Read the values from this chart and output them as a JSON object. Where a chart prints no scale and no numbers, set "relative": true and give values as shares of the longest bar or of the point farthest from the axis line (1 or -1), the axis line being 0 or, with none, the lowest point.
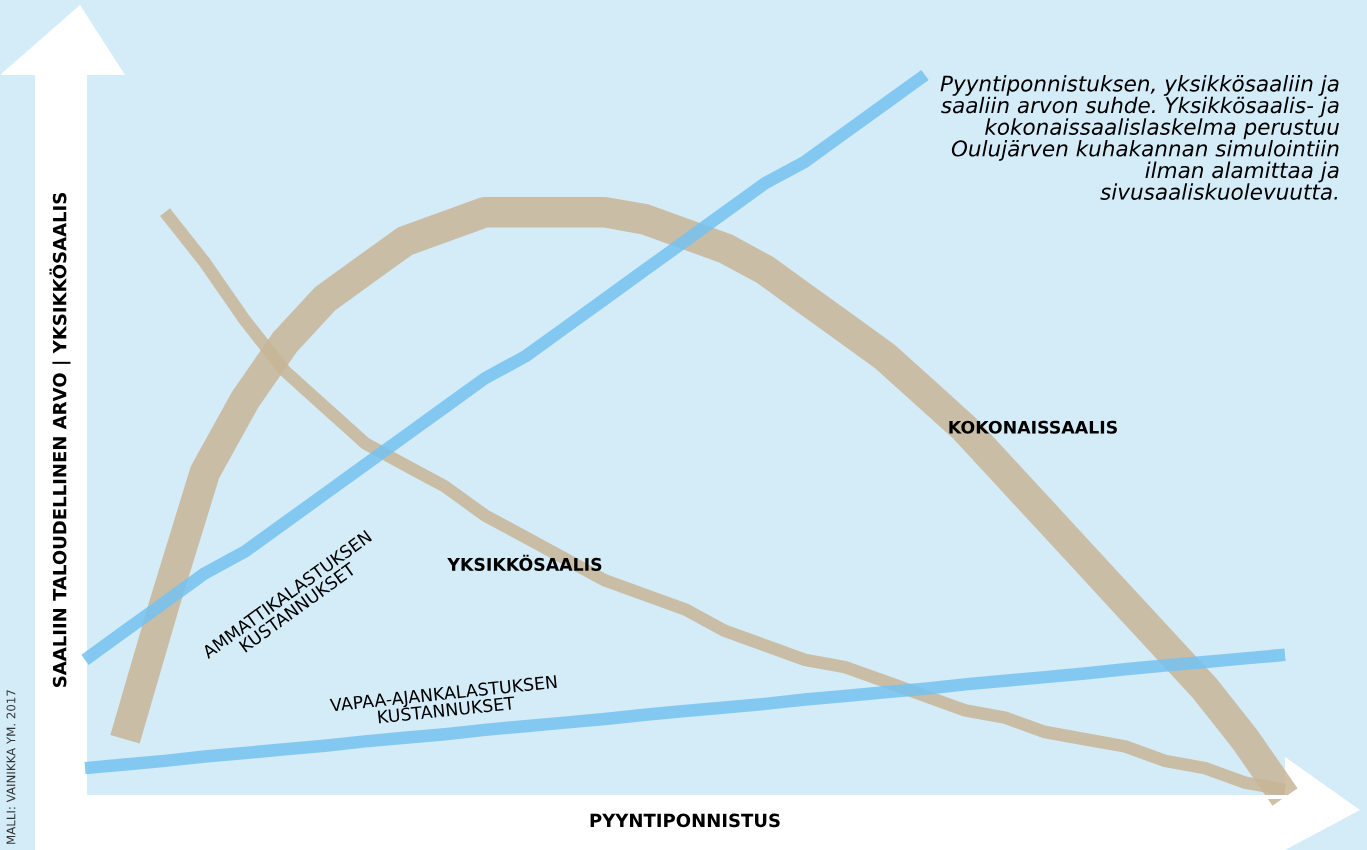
{
  "chart_data": {
    "type": "line",
    "relative": true,
    "xlabel": "PYYNTIPONNISTUS",
    "ylabel": "SAALIIN TALOUDELLINEN ARVO | YKSIKKÖSAALIS",
    "annotations": [
      "Pyyntiponnistuksen, yksikkösaaliin ja saaliin arvon suhde. Yksikkösaalis- ja kokonaissaalislaskelma perustuu Oulujärven kuhakannan simulointiin ilman alamittaa ja sivusaaliskuolevuutta.",
      "MALLI: VAINIKKA YM. 2017"
    ],
    "categories": [
      null,
      null,
      null,
      null,
      null,
      null,
      null,
      null,
      null,
      null,
      null,
      null,
      null,
      null,
      null,
      null,
      null,
      null,
      null,
      null,
      null,
      null,
      null,
      null,
      null,
      null,
      null,
      null,
      null,
      null,
      null
    ],
    "series": [
      {
        "name": "AMMATTIKALASTUKSEN KUSTANNUKSET",
        "color": "#74c2f0",
        "values": [
          0.19,
          0.23,
          0.27,
          0.31,
          0.34,
          0.38,
          0.42,
          0.46,
          0.5,
          0.54,
          0.58,
          0.61,
          0.65,
          0.69,
          0.73,
          0.77,
          0.81,
          0.85,
          0.88,
          0.92,
          0.96,
          1.0,
          null,
          null,
          null,
          null,
          null,
          null,
          null,
          null,
          null
        ]
      },
      {
        "name": "VAPAA-AJANKALASTUKSEN KUSTANNUKSET",
        "color": "#74c2f0",
        "values": [
          0.04,
          0.045,
          0.05,
          0.056,
          0.061,
          0.066,
          0.071,
          0.077,
          0.082,
          0.087,
          0.093,
          0.098,
          0.103,
          0.108,
          0.114,
          0.119,
          0.124,
          0.129,
          0.135,
          0.14,
          0.145,
          0.15,
          0.156,
          0.161,
          0.166,
          0.171,
          0.177,
          0.182,
          0.187,
          0.192,
          0.197
        ]
      },
      {
        "name": "KOKONAISSAALIS",
        "color": "#c8b596",
        "values": [
          null,
          0.08,
          0.27,
          0.45,
          0.55,
          0.63,
          0.69,
          0.73,
          0.77,
          0.79,
          0.81,
          0.81,
          0.81,
          0.81,
          0.8,
          0.78,
          0.76,
          0.73,
          0.69,
          0.65,
          0.61,
          0.56,
          0.51,
          0.45,
          0.39,
          0.33,
          0.27,
          0.21,
          0.15,
          0.08,
          0.0
        ]
      },
      {
        "name": "YKSIKKÖSAALIS",
        "color": "#c8b596",
        "values": [
          null,
          null,
          0.81,
          0.74,
          0.66,
          0.59,
          0.54,
          0.49,
          0.46,
          0.43,
          0.39,
          0.36,
          0.33,
          0.3,
          0.28,
          0.26,
          0.23,
          0.21,
          0.19,
          0.18,
          0.16,
          0.14,
          0.12,
          0.11,
          0.09,
          0.08,
          0.07,
          0.05,
          0.04,
          0.02,
          0.01
        ]
      }
    ]
  }
}
